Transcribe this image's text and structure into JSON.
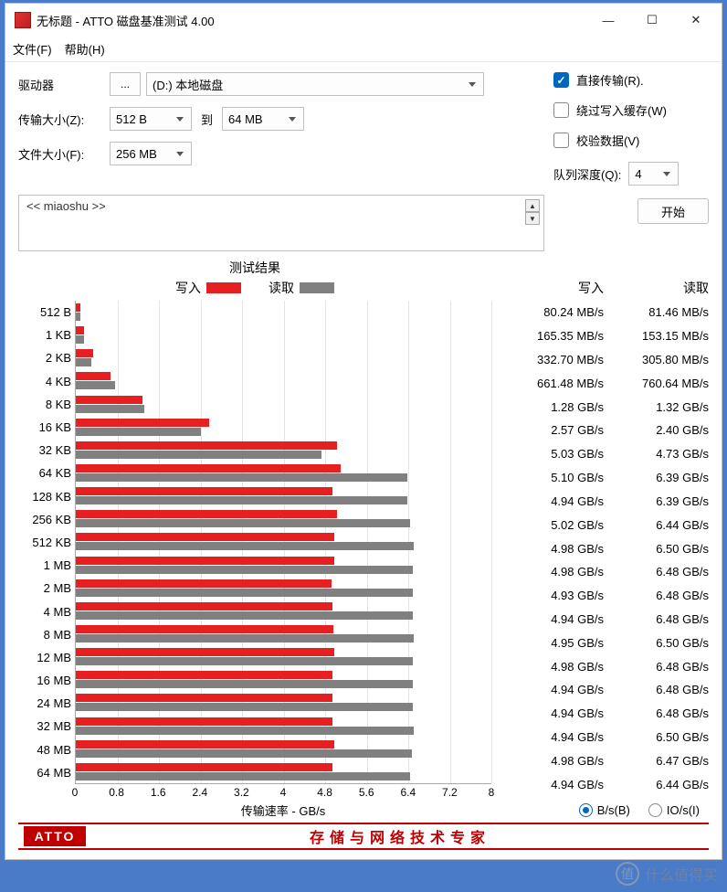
{
  "window": {
    "title": "无标题 - ATTO 磁盘基准测试 4.00"
  },
  "menu": {
    "file": "文件(F)",
    "help": "帮助(H)"
  },
  "config": {
    "drive_label": "驱动器",
    "browse": "...",
    "drive_value": "(D:) 本地磁盘",
    "transfer_size_label": "传输大小(Z):",
    "transfer_from": "512 B",
    "to_label": "到",
    "transfer_to": "64 MB",
    "file_size_label": "文件大小(F):",
    "file_size": "256 MB",
    "direct_io": "直接传输(R).",
    "bypass_cache": "绕过写入缓存(W)",
    "verify_data": "校验数据(V)",
    "queue_depth_label": "队列深度(Q):",
    "queue_depth": "4",
    "description": "<< miaoshu >>",
    "start": "开始"
  },
  "chart": {
    "title": "测试结果",
    "legend_write": "写入",
    "legend_read": "读取",
    "write_color": "#e62020",
    "read_color": "#808080",
    "x_label": "传输速率 - GB/s",
    "x_max": 8,
    "x_ticks": [
      "0",
      "0.8",
      "1.6",
      "2.4",
      "3.2",
      "4",
      "4.8",
      "5.6",
      "6.4",
      "7.2",
      "8"
    ],
    "rows": [
      {
        "label": "512 B",
        "write_gbs": 0.08024,
        "read_gbs": 0.08146,
        "write_txt": "80.24 MB/s",
        "read_txt": "81.46 MB/s"
      },
      {
        "label": "1 KB",
        "write_gbs": 0.16535,
        "read_gbs": 0.15315,
        "write_txt": "165.35 MB/s",
        "read_txt": "153.15 MB/s"
      },
      {
        "label": "2 KB",
        "write_gbs": 0.3327,
        "read_gbs": 0.3058,
        "write_txt": "332.70 MB/s",
        "read_txt": "305.80 MB/s"
      },
      {
        "label": "4 KB",
        "write_gbs": 0.66148,
        "read_gbs": 0.76064,
        "write_txt": "661.48 MB/s",
        "read_txt": "760.64 MB/s"
      },
      {
        "label": "8 KB",
        "write_gbs": 1.28,
        "read_gbs": 1.32,
        "write_txt": "1.28 GB/s",
        "read_txt": "1.32 GB/s"
      },
      {
        "label": "16 KB",
        "write_gbs": 2.57,
        "read_gbs": 2.4,
        "write_txt": "2.57 GB/s",
        "read_txt": "2.40 GB/s"
      },
      {
        "label": "32 KB",
        "write_gbs": 5.03,
        "read_gbs": 4.73,
        "write_txt": "5.03 GB/s",
        "read_txt": "4.73 GB/s"
      },
      {
        "label": "64 KB",
        "write_gbs": 5.1,
        "read_gbs": 6.39,
        "write_txt": "5.10 GB/s",
        "read_txt": "6.39 GB/s"
      },
      {
        "label": "128 KB",
        "write_gbs": 4.94,
        "read_gbs": 6.39,
        "write_txt": "4.94 GB/s",
        "read_txt": "6.39 GB/s"
      },
      {
        "label": "256 KB",
        "write_gbs": 5.02,
        "read_gbs": 6.44,
        "write_txt": "5.02 GB/s",
        "read_txt": "6.44 GB/s"
      },
      {
        "label": "512 KB",
        "write_gbs": 4.98,
        "read_gbs": 6.5,
        "write_txt": "4.98 GB/s",
        "read_txt": "6.50 GB/s"
      },
      {
        "label": "1 MB",
        "write_gbs": 4.98,
        "read_gbs": 6.48,
        "write_txt": "4.98 GB/s",
        "read_txt": "6.48 GB/s"
      },
      {
        "label": "2 MB",
        "write_gbs": 4.93,
        "read_gbs": 6.48,
        "write_txt": "4.93 GB/s",
        "read_txt": "6.48 GB/s"
      },
      {
        "label": "4 MB",
        "write_gbs": 4.94,
        "read_gbs": 6.48,
        "write_txt": "4.94 GB/s",
        "read_txt": "6.48 GB/s"
      },
      {
        "label": "8 MB",
        "write_gbs": 4.95,
        "read_gbs": 6.5,
        "write_txt": "4.95 GB/s",
        "read_txt": "6.50 GB/s"
      },
      {
        "label": "12 MB",
        "write_gbs": 4.98,
        "read_gbs": 6.48,
        "write_txt": "4.98 GB/s",
        "read_txt": "6.48 GB/s"
      },
      {
        "label": "16 MB",
        "write_gbs": 4.94,
        "read_gbs": 6.48,
        "write_txt": "4.94 GB/s",
        "read_txt": "6.48 GB/s"
      },
      {
        "label": "24 MB",
        "write_gbs": 4.94,
        "read_gbs": 6.48,
        "write_txt": "4.94 GB/s",
        "read_txt": "6.48 GB/s"
      },
      {
        "label": "32 MB",
        "write_gbs": 4.94,
        "read_gbs": 6.5,
        "write_txt": "4.94 GB/s",
        "read_txt": "6.50 GB/s"
      },
      {
        "label": "48 MB",
        "write_gbs": 4.98,
        "read_gbs": 6.47,
        "write_txt": "4.98 GB/s",
        "read_txt": "6.47 GB/s"
      },
      {
        "label": "64 MB",
        "write_gbs": 4.94,
        "read_gbs": 6.44,
        "write_txt": "4.94 GB/s",
        "read_txt": "6.44 GB/s"
      }
    ],
    "data_header_write": "写入",
    "data_header_read": "读取",
    "radio_bs": "B/s(B)",
    "radio_ios": "IO/s(I)"
  },
  "footer": {
    "logo": "ATTO",
    "slogan": "存储与网络技术专家"
  },
  "watermark": "什么值得买"
}
